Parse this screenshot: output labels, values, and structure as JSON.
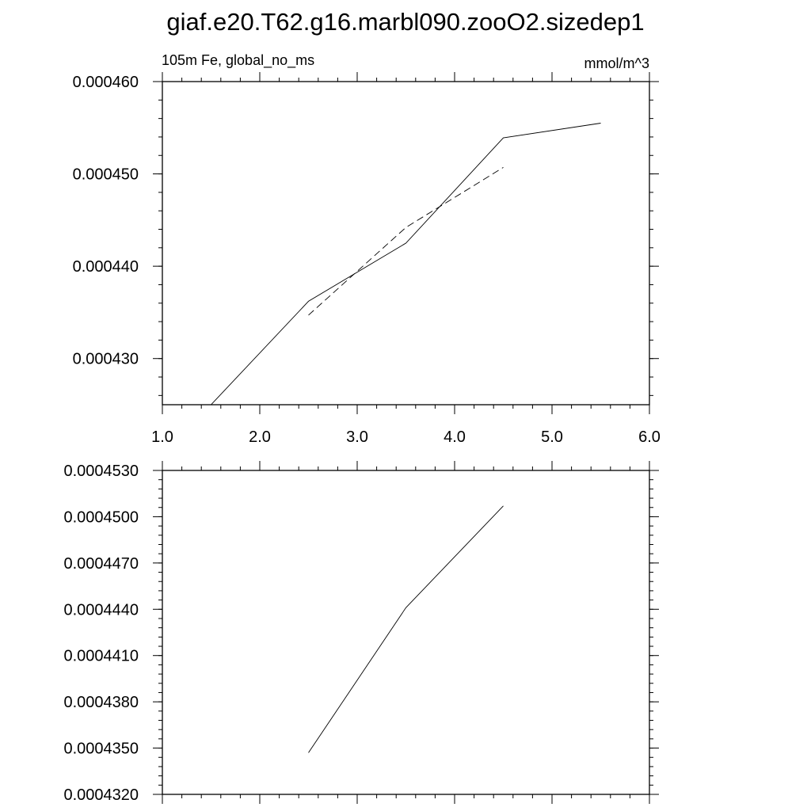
{
  "title": "giaf.e20.T62.g16.marbl090.zooO2.sizedep1",
  "chart_data": [
    {
      "type": "line",
      "left_string": "105m Fe, global_no_ms",
      "right_string": "mmol/m^3",
      "xlim": [
        1.0,
        6.0
      ],
      "ylim": [
        0.000425,
        0.00046
      ],
      "x_ticks": [
        1.0,
        2.0,
        3.0,
        4.0,
        5.0,
        6.0
      ],
      "x_tick_labels": [
        "1.0",
        "2.0",
        "3.0",
        "4.0",
        "5.0",
        "6.0"
      ],
      "y_ticks": [
        0.00043,
        0.00044,
        0.00045,
        0.00046
      ],
      "y_tick_labels": [
        "0.000430",
        "0.000440",
        "0.000450",
        "0.000460"
      ],
      "series": [
        {
          "style": "solid",
          "x": [
            1.5,
            2.5,
            3.5,
            4.5,
            5.5
          ],
          "y": [
            0.000425,
            0.0004362,
            0.0004425,
            0.0004539,
            0.0004555
          ]
        },
        {
          "style": "dashed",
          "x": [
            2.5,
            3.5,
            4.5
          ],
          "y": [
            0.0004347,
            0.0004442,
            0.0004507
          ]
        }
      ]
    },
    {
      "type": "line",
      "xlim": [
        1.0,
        6.0
      ],
      "ylim": [
        0.000432,
        0.000453
      ],
      "x_ticks": [
        1.0,
        2.0,
        3.0,
        4.0,
        5.0,
        6.0
      ],
      "y_ticks": [
        0.000432,
        0.000435,
        0.000438,
        0.000441,
        0.000444,
        0.000447,
        0.00045,
        0.000453
      ],
      "y_tick_labels": [
        "0.0004320",
        "0.0004350",
        "0.0004380",
        "0.0004410",
        "0.0004440",
        "0.0004470",
        "0.0004500",
        "0.0004530"
      ],
      "series": [
        {
          "style": "solid",
          "x": [
            2.5,
            3.5,
            4.5
          ],
          "y": [
            0.0004347,
            0.0004441,
            0.0004507
          ]
        }
      ]
    }
  ]
}
